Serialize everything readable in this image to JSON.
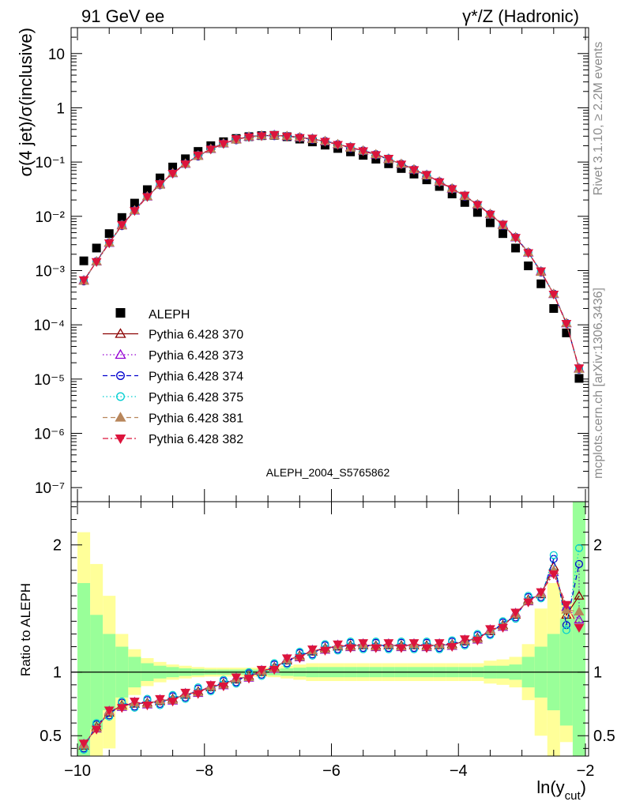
{
  "header": {
    "left_title": "91 GeV ee",
    "right_title": "γ*/Z (Hadronic)"
  },
  "side_labels": {
    "rivet": "Rivet 3.1.10, ≥ 2.2M events",
    "mcplots": "mcplots.cern.ch [arXiv:1306.3436]"
  },
  "watermark": "ALEPH_2004_S5765862",
  "chart_data": [
    {
      "type": "scatter",
      "title": "",
      "ylabel": "σ(4 jet)/σ(inclusive)",
      "yscale": "log",
      "ylim": [
        5.5e-08,
        30
      ],
      "xlim": [
        -10.1,
        -1.95
      ],
      "yticks": [
        {
          "v": 10,
          "label": "10"
        },
        {
          "v": 1,
          "label": "1"
        },
        {
          "v": 0.1,
          "label": "10⁻¹"
        },
        {
          "v": 0.01,
          "label": "10⁻²"
        },
        {
          "v": 0.001,
          "label": "10⁻³"
        },
        {
          "v": 0.0001,
          "label": "10⁻⁴"
        },
        {
          "v": 1e-05,
          "label": "10⁻⁵"
        },
        {
          "v": 1e-06,
          "label": "10⁻⁶"
        },
        {
          "v": 1e-07,
          "label": "10⁻⁷"
        }
      ],
      "x": [
        -9.9,
        -9.7,
        -9.5,
        -9.3,
        -9.1,
        -8.9,
        -8.7,
        -8.5,
        -8.3,
        -8.1,
        -7.9,
        -7.7,
        -7.5,
        -7.3,
        -7.1,
        -6.9,
        -6.7,
        -6.5,
        -6.3,
        -6.1,
        -5.9,
        -5.7,
        -5.5,
        -5.3,
        -5.1,
        -4.9,
        -4.7,
        -4.5,
        -4.3,
        -4.1,
        -3.9,
        -3.7,
        -3.5,
        -3.3,
        -3.1,
        -2.9,
        -2.7,
        -2.5,
        -2.3,
        -2.1
      ],
      "data_series": {
        "name": "ALEPH",
        "values": [
          0.00151,
          0.0026,
          0.0048,
          0.0095,
          0.0175,
          0.031,
          0.051,
          0.081,
          0.115,
          0.157,
          0.2,
          0.237,
          0.272,
          0.294,
          0.307,
          0.31,
          0.293,
          0.265,
          0.235,
          0.205,
          0.178,
          0.154,
          0.133,
          0.113,
          0.093,
          0.076,
          0.06,
          0.047,
          0.0355,
          0.0258,
          0.018,
          0.0118,
          0.0076,
          0.0048,
          0.0026,
          0.00122,
          0.00057,
          0.0002,
          7.1e-05,
          1.03e-05
        ]
      },
      "mc_values": [
        0.00065,
        0.00147,
        0.00325,
        0.0068,
        0.0128,
        0.0232,
        0.0384,
        0.0623,
        0.0929,
        0.13,
        0.174,
        0.22,
        0.26,
        0.293,
        0.307,
        0.31,
        0.3,
        0.285,
        0.265,
        0.242,
        0.212,
        0.185,
        0.162,
        0.138,
        0.113,
        0.092,
        0.073,
        0.057,
        0.0435,
        0.0325,
        0.0236,
        0.0165,
        0.011,
        0.0069,
        0.0041,
        0.00215,
        0.00095,
        0.00037,
        0.000107,
        1.55e-05
      ],
      "series": [
        {
          "name": "Pythia 6.428 370",
          "color": "#8b0000",
          "marker": "triangle-open",
          "dash": "solid"
        },
        {
          "name": "Pythia 6.428 373",
          "color": "#9400d3",
          "marker": "triangle-open",
          "dash": "dotted"
        },
        {
          "name": "Pythia 6.428 374",
          "color": "#0000cd",
          "marker": "circle-open",
          "dash": "dashed"
        },
        {
          "name": "Pythia 6.428 375",
          "color": "#00ced1",
          "marker": "circle-open",
          "dash": "dotted"
        },
        {
          "name": "Pythia 6.428 381",
          "color": "#b8865b",
          "marker": "triangle-filled",
          "dash": "dashed"
        },
        {
          "name": "Pythia 6.428 382",
          "color": "#dc143c",
          "marker": "triangle-down-filled",
          "dash": "dashdot"
        }
      ],
      "legend_position": "left"
    },
    {
      "type": "line",
      "ylabel": "Ratio to ALEPH",
      "xlabel": "ln(y_cut)",
      "xlabel_main": "ln(y",
      "xlabel_sub": "cut",
      "xlabel_close": ")",
      "ylim": [
        0.34,
        2.34
      ],
      "xlim": [
        -10.1,
        -1.95
      ],
      "yticks": [
        {
          "v": 0.5,
          "label": "0.5"
        },
        {
          "v": 1,
          "label": "1"
        },
        {
          "v": 2,
          "label": "2"
        }
      ],
      "xticks": [
        {
          "v": -10,
          "label": "−10"
        },
        {
          "v": -8,
          "label": "−8"
        },
        {
          "v": -6,
          "label": "−6"
        },
        {
          "v": -4,
          "label": "−4"
        },
        {
          "v": -2,
          "label": "−2"
        }
      ],
      "ratio_values": [
        0.42,
        0.57,
        0.68,
        0.74,
        0.75,
        0.76,
        0.77,
        0.79,
        0.82,
        0.85,
        0.88,
        0.91,
        0.94,
        0.97,
        1.0,
        1.04,
        1.09,
        1.13,
        1.16,
        1.19,
        1.2,
        1.21,
        1.21,
        1.21,
        1.21,
        1.21,
        1.21,
        1.21,
        1.21,
        1.22,
        1.24,
        1.27,
        1.32,
        1.37,
        1.45,
        1.57,
        1.61,
        1.83,
        1.45,
        1.6
      ],
      "ratio_spread": [
        0.03,
        0.02,
        0.01,
        0.01,
        0.01,
        0.01,
        0.01,
        0.01,
        0.01,
        0.01,
        0.01,
        0.01,
        0.01,
        0.01,
        0.01,
        0.01,
        0.01,
        0.01,
        0.01,
        0.01,
        0.01,
        0.01,
        0.01,
        0.01,
        0.01,
        0.01,
        0.01,
        0.01,
        0.01,
        0.01,
        0.01,
        0.01,
        0.01,
        0.01,
        0.01,
        0.02,
        0.02,
        0.06,
        0.08,
        0.25
      ],
      "band_stat": [
        0.7,
        0.45,
        0.3,
        0.2,
        0.12,
        0.07,
        0.05,
        0.04,
        0.03,
        0.025,
        0.02,
        0.02,
        0.02,
        0.02,
        0.02,
        0.025,
        0.03,
        0.035,
        0.04,
        0.04,
        0.04,
        0.04,
        0.04,
        0.04,
        0.04,
        0.04,
        0.04,
        0.04,
        0.04,
        0.04,
        0.04,
        0.04,
        0.05,
        0.05,
        0.06,
        0.12,
        0.2,
        0.3,
        0.42,
        1.4
      ],
      "band_total": [
        1.1,
        0.85,
        0.6,
        0.3,
        0.18,
        0.11,
        0.08,
        0.06,
        0.05,
        0.04,
        0.035,
        0.035,
        0.035,
        0.035,
        0.035,
        0.04,
        0.05,
        0.06,
        0.07,
        0.07,
        0.07,
        0.07,
        0.07,
        0.07,
        0.07,
        0.07,
        0.07,
        0.07,
        0.07,
        0.07,
        0.07,
        0.07,
        0.09,
        0.1,
        0.12,
        0.22,
        0.5,
        0.7,
        0.55,
        1.4
      ]
    }
  ]
}
